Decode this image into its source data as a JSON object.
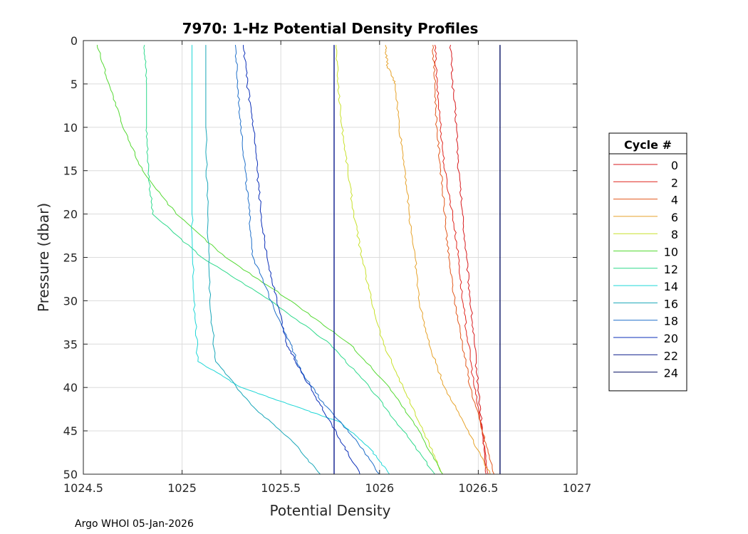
{
  "chart_data": {
    "type": "line",
    "title": "7970: 1-Hz Potential Density Profiles",
    "xlabel": "Potential Density",
    "ylabel": "Pressure (dbar)",
    "xlim": [
      1024.5,
      1027
    ],
    "ylim": [
      0,
      50
    ],
    "y_reversed": true,
    "grid": true,
    "x_ticks": [
      1024.5,
      1025,
      1025.5,
      1026,
      1026.5,
      1027
    ],
    "x_tick_labels": [
      "1024.5",
      "1025",
      "1025.5",
      "1026",
      "1026.5",
      "1027"
    ],
    "y_ticks": [
      0,
      5,
      10,
      15,
      20,
      25,
      30,
      35,
      40,
      45,
      50
    ],
    "y_tick_labels": [
      "0",
      "5",
      "10",
      "15",
      "20",
      "25",
      "30",
      "35",
      "40",
      "45",
      "50"
    ],
    "legend": {
      "title": "Cycle #",
      "position": "right-outside"
    },
    "footer": "Argo WHOI 05-Jan-2026",
    "series": [
      {
        "name": "0",
        "color": "#d7191c",
        "points": [
          [
            1026.36,
            0.5
          ],
          [
            1026.37,
            5
          ],
          [
            1026.39,
            10
          ],
          [
            1026.4,
            15
          ],
          [
            1026.42,
            20
          ],
          [
            1026.44,
            25
          ],
          [
            1026.46,
            30
          ],
          [
            1026.48,
            35
          ],
          [
            1026.5,
            40
          ],
          [
            1026.52,
            45
          ],
          [
            1026.54,
            50
          ]
        ]
      },
      {
        "name": "2",
        "color": "#e0251d",
        "points": [
          [
            1026.28,
            0.5
          ],
          [
            1026.29,
            5
          ],
          [
            1026.31,
            10
          ],
          [
            1026.33,
            15
          ],
          [
            1026.37,
            20
          ],
          [
            1026.4,
            25
          ],
          [
            1026.42,
            30
          ],
          [
            1026.45,
            35
          ],
          [
            1026.48,
            40
          ],
          [
            1026.52,
            45
          ],
          [
            1026.55,
            50
          ]
        ]
      },
      {
        "name": "4",
        "color": "#e2571b",
        "points": [
          [
            1026.27,
            0.5
          ],
          [
            1026.28,
            5
          ],
          [
            1026.29,
            10
          ],
          [
            1026.31,
            15
          ],
          [
            1026.33,
            20
          ],
          [
            1026.35,
            25
          ],
          [
            1026.38,
            30
          ],
          [
            1026.42,
            35
          ],
          [
            1026.46,
            40
          ],
          [
            1026.52,
            45
          ],
          [
            1026.58,
            50
          ]
        ]
      },
      {
        "name": "6",
        "color": "#e6a22a",
        "points": [
          [
            1026.03,
            0.5
          ],
          [
            1026.04,
            3
          ],
          [
            1026.08,
            5
          ],
          [
            1026.1,
            10
          ],
          [
            1026.13,
            15
          ],
          [
            1026.15,
            20
          ],
          [
            1026.18,
            25
          ],
          [
            1026.2,
            30
          ],
          [
            1026.25,
            35
          ],
          [
            1026.33,
            40
          ],
          [
            1026.45,
            45
          ],
          [
            1026.56,
            50
          ]
        ]
      },
      {
        "name": "8",
        "color": "#c8e12c",
        "points": [
          [
            1025.78,
            0.5
          ],
          [
            1025.79,
            5
          ],
          [
            1025.81,
            10
          ],
          [
            1025.84,
            15
          ],
          [
            1025.87,
            20
          ],
          [
            1025.91,
            25
          ],
          [
            1025.96,
            30
          ],
          [
            1026.02,
            35
          ],
          [
            1026.12,
            40
          ],
          [
            1026.22,
            45
          ],
          [
            1026.32,
            50
          ]
        ]
      },
      {
        "name": "10",
        "color": "#55d933",
        "points": [
          [
            1024.57,
            0.5
          ],
          [
            1024.63,
            5
          ],
          [
            1024.7,
            10
          ],
          [
            1024.8,
            15
          ],
          [
            1024.97,
            20
          ],
          [
            1025.22,
            25
          ],
          [
            1025.55,
            30
          ],
          [
            1025.85,
            35
          ],
          [
            1026.05,
            40
          ],
          [
            1026.2,
            45
          ],
          [
            1026.32,
            50
          ]
        ]
      },
      {
        "name": "12",
        "color": "#2ed98c",
        "points": [
          [
            1024.81,
            0.5
          ],
          [
            1024.82,
            5
          ],
          [
            1024.82,
            10
          ],
          [
            1024.83,
            15
          ],
          [
            1024.85,
            20
          ],
          [
            1025.1,
            25
          ],
          [
            1025.45,
            30
          ],
          [
            1025.75,
            35
          ],
          [
            1025.95,
            40
          ],
          [
            1026.12,
            45
          ],
          [
            1026.28,
            50
          ]
        ]
      },
      {
        "name": "14",
        "color": "#1ed6d6",
        "points": [
          [
            1025.05,
            0.5
          ],
          [
            1025.05,
            10
          ],
          [
            1025.05,
            20
          ],
          [
            1025.06,
            30
          ],
          [
            1025.08,
            37
          ],
          [
            1025.3,
            40
          ],
          [
            1025.55,
            42
          ],
          [
            1025.8,
            44
          ],
          [
            1025.95,
            47
          ],
          [
            1026.05,
            50
          ]
        ]
      },
      {
        "name": "16",
        "color": "#18a6b8",
        "points": [
          [
            1025.12,
            0.5
          ],
          [
            1025.12,
            10
          ],
          [
            1025.13,
            20
          ],
          [
            1025.14,
            30
          ],
          [
            1025.17,
            37
          ],
          [
            1025.35,
            42
          ],
          [
            1025.55,
            46
          ],
          [
            1025.7,
            50
          ]
        ]
      },
      {
        "name": "18",
        "color": "#1f6fc9",
        "points": [
          [
            1025.27,
            0.5
          ],
          [
            1025.28,
            5
          ],
          [
            1025.3,
            10
          ],
          [
            1025.32,
            15
          ],
          [
            1025.34,
            20
          ],
          [
            1025.36,
            25
          ],
          [
            1025.45,
            30
          ],
          [
            1025.55,
            35
          ],
          [
            1025.6,
            38
          ],
          [
            1025.72,
            42
          ],
          [
            1025.88,
            46
          ],
          [
            1026.0,
            50
          ]
        ]
      },
      {
        "name": "20",
        "color": "#0b2fb8",
        "points": [
          [
            1025.31,
            0.5
          ],
          [
            1025.33,
            5
          ],
          [
            1025.36,
            10
          ],
          [
            1025.38,
            15
          ],
          [
            1025.4,
            20
          ],
          [
            1025.43,
            25
          ],
          [
            1025.48,
            30
          ],
          [
            1025.53,
            35
          ],
          [
            1025.6,
            38
          ],
          [
            1025.7,
            42
          ],
          [
            1025.8,
            46
          ],
          [
            1025.9,
            50
          ]
        ]
      },
      {
        "name": "22",
        "color": "#0a1a8c",
        "points": [
          [
            1025.77,
            0.5
          ],
          [
            1025.77,
            10
          ],
          [
            1025.77,
            20
          ],
          [
            1025.77,
            30
          ],
          [
            1025.77,
            40
          ],
          [
            1025.77,
            50
          ]
        ]
      },
      {
        "name": "24",
        "color": "#061063",
        "points": [
          [
            1026.61,
            0.5
          ],
          [
            1026.61,
            10
          ],
          [
            1026.61,
            20
          ],
          [
            1026.61,
            30
          ],
          [
            1026.61,
            40
          ],
          [
            1026.61,
            50
          ]
        ]
      }
    ]
  }
}
